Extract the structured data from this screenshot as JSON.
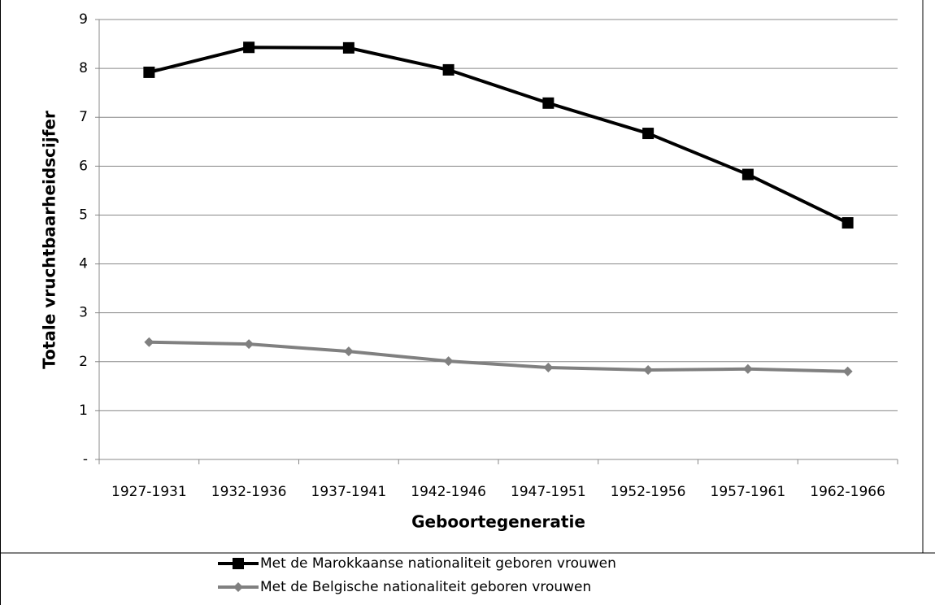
{
  "chart_data": {
    "type": "line",
    "y_label": "Totale vruchtbaarheidscijfer",
    "x_label": "Geboortegeneratie",
    "categories": [
      "1927-1931",
      "1932-1936",
      "1937-1941",
      "1942-1946",
      "1947-1951",
      "1952-1956",
      "1957-1961",
      "1962-1966"
    ],
    "series": [
      {
        "name": "Met de Marokkaanse nationaliteit geboren vrouwen",
        "color": "#000000",
        "marker": "square",
        "values": [
          7.92,
          8.43,
          8.42,
          7.97,
          7.29,
          6.67,
          5.83,
          4.84
        ]
      },
      {
        "name": "Met de Belgische nationaliteit geboren vrouwen",
        "color": "#808080",
        "marker": "diamond",
        "values": [
          2.4,
          2.36,
          2.21,
          2.01,
          1.88,
          1.83,
          1.85,
          1.8
        ]
      }
    ],
    "ylim": [
      0,
      9
    ],
    "yticks": [
      {
        "value": 0,
        "label": "-"
      },
      1,
      2,
      3,
      4,
      5,
      6,
      7,
      8,
      9
    ],
    "grid": true,
    "legend": "bottom"
  }
}
